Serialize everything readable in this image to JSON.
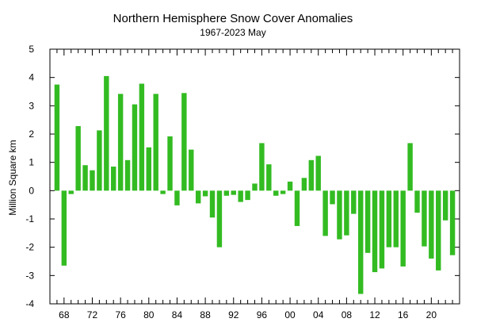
{
  "chart_data": {
    "type": "bar",
    "title": "Northern Hemisphere Snow Cover Anomalies",
    "subtitle": "1967-2023 May",
    "xlabel": "",
    "ylabel": "Million Square km",
    "ylim": [
      -4,
      5
    ],
    "xlim": [
      1966,
      2024
    ],
    "y_ticks": [
      "5",
      "4",
      "3",
      "2",
      "1",
      "0",
      "-1",
      "-2",
      "-3",
      "-4"
    ],
    "x_tick_labels": [
      "68",
      "72",
      "76",
      "80",
      "84",
      "88",
      "92",
      "96",
      "00",
      "04",
      "08",
      "12",
      "16",
      "20"
    ],
    "x_tick_years": [
      1968,
      1972,
      1976,
      1980,
      1984,
      1988,
      1992,
      1996,
      2000,
      2004,
      2008,
      2012,
      2016,
      2020
    ],
    "grid": false,
    "bar_color": "#33bb22",
    "x": [
      1967,
      1968,
      1969,
      1970,
      1971,
      1972,
      1973,
      1974,
      1975,
      1976,
      1977,
      1978,
      1979,
      1980,
      1981,
      1982,
      1983,
      1984,
      1985,
      1986,
      1987,
      1988,
      1989,
      1990,
      1991,
      1992,
      1993,
      1994,
      1995,
      1996,
      1997,
      1998,
      1999,
      2000,
      2001,
      2002,
      2003,
      2004,
      2005,
      2006,
      2007,
      2008,
      2009,
      2010,
      2011,
      2012,
      2013,
      2014,
      2015,
      2016,
      2017,
      2018,
      2019,
      2020,
      2021,
      2022,
      2023
    ],
    "values": [
      3.75,
      -2.65,
      -0.12,
      2.28,
      0.9,
      0.72,
      2.13,
      4.05,
      0.85,
      3.42,
      1.08,
      3.05,
      3.78,
      1.53,
      3.42,
      -0.12,
      1.92,
      -0.52,
      3.45,
      1.45,
      -0.45,
      -0.2,
      -0.95,
      -2.0,
      -0.18,
      -0.15,
      -0.4,
      -0.33,
      0.25,
      1.68,
      0.93,
      -0.18,
      -0.12,
      0.32,
      -1.25,
      0.45,
      1.08,
      1.23,
      -1.6,
      -0.48,
      -1.72,
      -1.58,
      -0.82,
      -3.65,
      -2.2,
      -2.88,
      -2.75,
      -2.0,
      -2.0,
      -2.68,
      1.68,
      -0.78,
      -1.97,
      -2.4,
      -2.82,
      -1.05,
      -2.28
    ]
  }
}
